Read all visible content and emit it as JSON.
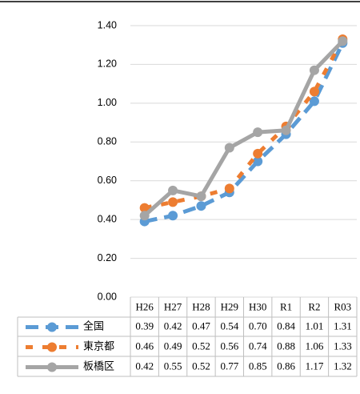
{
  "chart_data": {
    "type": "line",
    "categories": [
      "H26",
      "H27",
      "H28",
      "H29",
      "H30",
      "R1",
      "R2",
      "R03"
    ],
    "series": [
      {
        "name": "全国",
        "color": "#5b9bd5",
        "dash": "16,9",
        "values": [
          0.39,
          0.42,
          0.47,
          0.54,
          0.7,
          0.84,
          1.01,
          1.31
        ],
        "value_labels": [
          "0.39",
          "0.42",
          "0.47",
          "0.54",
          "0.70",
          "0.84",
          "1.01",
          "1.31"
        ]
      },
      {
        "name": "東京都",
        "color": "#ed7d31",
        "dash": "9,12",
        "values": [
          0.46,
          0.49,
          0.52,
          0.56,
          0.74,
          0.88,
          1.06,
          1.33
        ],
        "value_labels": [
          "0.46",
          "0.49",
          "0.52",
          "0.56",
          "0.74",
          "0.88",
          "1.06",
          "1.33"
        ]
      },
      {
        "name": "板橋区",
        "color": "#a5a5a5",
        "dash": "none",
        "values": [
          0.42,
          0.55,
          0.52,
          0.77,
          0.85,
          0.86,
          1.17,
          1.32
        ],
        "value_labels": [
          "0.42",
          "0.55",
          "0.52",
          "0.77",
          "0.85",
          "0.86",
          "1.17",
          "1.32"
        ]
      }
    ],
    "ylim": [
      0,
      1.4
    ],
    "yticks": [
      {
        "value": 0,
        "label": "0.00"
      },
      {
        "value": 0.2,
        "label": "0.20"
      },
      {
        "value": 0.4,
        "label": "0.40"
      },
      {
        "value": 0.6,
        "label": "0.60"
      },
      {
        "value": 0.8,
        "label": "0.80"
      },
      {
        "value": 1,
        "label": "1.00"
      },
      {
        "value": 1.2,
        "label": "1.20"
      },
      {
        "value": 1.4,
        "label": "1.40"
      }
    ],
    "grid": true,
    "data_table": true
  }
}
